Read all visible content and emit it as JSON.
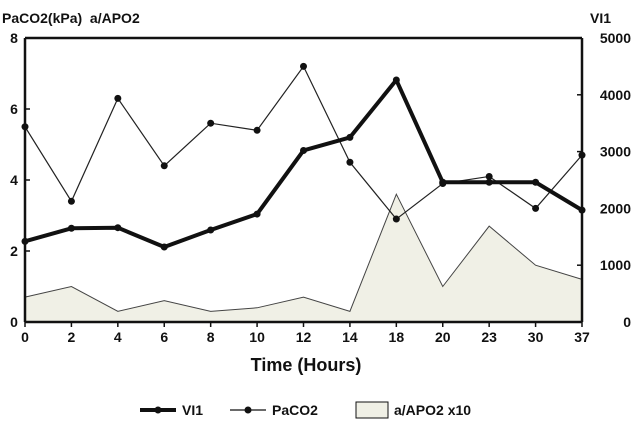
{
  "chart_data": {
    "type": "line",
    "title_left": "PaCO2(kPa)  a/APO2",
    "title_right": "VI1",
    "xlabel": "Time (Hours)",
    "categories": [
      "0",
      "2",
      "4",
      "6",
      "8",
      "10",
      "12",
      "14",
      "18",
      "20",
      "23",
      "30",
      "37"
    ],
    "y_left": {
      "range": [
        0,
        8
      ],
      "ticks": [
        "0",
        "2",
        "4",
        "6",
        "8"
      ]
    },
    "y_right": {
      "range": [
        0,
        5000
      ],
      "ticks": [
        "0",
        "1000",
        "2000",
        "3000",
        "4000",
        "5000"
      ]
    },
    "grid": false,
    "legend_position": "bottom",
    "series": [
      {
        "name": "VI1",
        "type": "line",
        "axis": "right",
        "style": "thick",
        "values": [
          1420,
          1650,
          1660,
          1320,
          1620,
          1900,
          3020,
          3250,
          4260,
          2460,
          2460,
          2460,
          1970
        ]
      },
      {
        "name": "PaCO2",
        "type": "line",
        "axis": "left",
        "style": "thin-with-markers",
        "values": [
          5.5,
          3.4,
          6.3,
          4.4,
          5.6,
          5.4,
          7.2,
          4.5,
          2.9,
          3.9,
          4.1,
          3.2,
          4.7
        ]
      },
      {
        "name": "a/APO2 x10",
        "type": "area",
        "axis": "left",
        "style": "filled",
        "values": [
          0.7,
          1.0,
          0.3,
          0.6,
          0.3,
          0.4,
          0.7,
          0.3,
          3.6,
          1.0,
          2.7,
          1.6,
          1.2
        ]
      }
    ]
  }
}
